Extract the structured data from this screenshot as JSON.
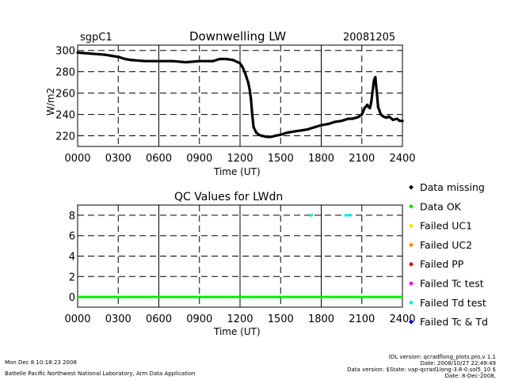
{
  "header": {
    "site": "sgpC1",
    "date": "20081205"
  },
  "chart_data": [
    {
      "type": "line",
      "title": "Downwelling LW",
      "xlabel": "Time (UT)",
      "ylabel": "W/m2",
      "xlim": [
        0,
        2400
      ],
      "ylim": [
        210,
        305
      ],
      "xticks": [
        "0000",
        "0300",
        "0600",
        "0900",
        "1200",
        "1500",
        "1800",
        "2100",
        "2400"
      ],
      "yticks": [
        220,
        240,
        260,
        280,
        300
      ],
      "grid": true,
      "series": [
        {
          "x": [
            0,
            100,
            200,
            250,
            300,
            350,
            400,
            500,
            600,
            700,
            800,
            900,
            1000,
            1050,
            1100,
            1150,
            1200,
            1220,
            1240,
            1260,
            1270,
            1280,
            1290,
            1300,
            1320,
            1340,
            1360,
            1400,
            1430,
            1460,
            1500,
            1550,
            1600,
            1650,
            1700,
            1750,
            1800,
            1850,
            1900,
            1950,
            2000,
            2030,
            2060,
            2080,
            2100,
            2110,
            2120,
            2140,
            2150,
            2160,
            2170,
            2180,
            2190,
            2200,
            2210,
            2220,
            2240,
            2260,
            2280,
            2300,
            2330,
            2360,
            2380,
            2400
          ],
          "y": [
            298,
            297,
            296,
            295,
            294,
            292,
            291,
            290,
            290,
            290,
            289,
            290,
            290,
            292,
            292,
            291,
            288,
            284,
            278,
            270,
            264,
            255,
            240,
            228,
            223,
            221,
            220,
            219,
            219,
            220,
            221,
            223,
            224,
            225,
            226,
            228,
            230,
            231,
            233,
            234,
            236,
            236,
            237,
            238,
            240,
            243,
            246,
            249,
            247,
            246,
            252,
            262,
            272,
            275,
            262,
            247,
            240,
            238,
            237,
            238,
            235,
            236,
            234,
            234
          ]
        }
      ]
    },
    {
      "type": "scatter",
      "title": "QC Values for LWdn",
      "xlabel": "Time (UT)",
      "ylabel": "",
      "xlim": [
        0,
        2400
      ],
      "ylim": [
        -1,
        9
      ],
      "xticks": [
        "0000",
        "0300",
        "0600",
        "0900",
        "1200",
        "1500",
        "1800",
        "2100",
        "2400"
      ],
      "yticks": [
        0,
        2,
        4,
        6,
        8
      ],
      "grid": true,
      "series": [
        {
          "name": "Data OK",
          "x_range": [
            0,
            2400
          ],
          "y": 0,
          "color": "#00ee00"
        },
        {
          "name": "Failed Td test",
          "x": [
            1720,
            1730,
            1980,
            1990,
            2000,
            2010,
            2020
          ],
          "y": [
            8,
            8,
            8,
            8,
            8,
            8,
            8
          ],
          "color": "#00e5e5"
        }
      ],
      "legend": {
        "placement": "right",
        "entries": [
          {
            "label": "Data missing",
            "color": "#000000"
          },
          {
            "label": "Data OK",
            "color": "#00ee00"
          },
          {
            "label": "Failed UC1",
            "color": "#e8e800"
          },
          {
            "label": "Failed UC2",
            "color": "#ff8c00"
          },
          {
            "label": "Failed PP",
            "color": "#e00000"
          },
          {
            "label": "Failed Tc test",
            "color": "#ee00ee"
          },
          {
            "label": "Failed Td test",
            "color": "#00e5e5"
          },
          {
            "label": "Failed Tc & Td",
            "color": "#0000dd"
          }
        ]
      }
    }
  ],
  "footer": {
    "timestamp": "Mon Dec 8 10:18:23 2008",
    "lab": "Battelle Pacific Northwest National Laboratory, Arm Data Application",
    "idl_version": "IDL version: qcradflong_plots.pro,v 1.1",
    "idl_date": "Date: 2008/10/27 22:49:49",
    "data_version": "Data version: $State: vap-qcrad1long-3.8-0.sol5_10 $",
    "data_date": "Date: 8-Dec-2008,"
  }
}
